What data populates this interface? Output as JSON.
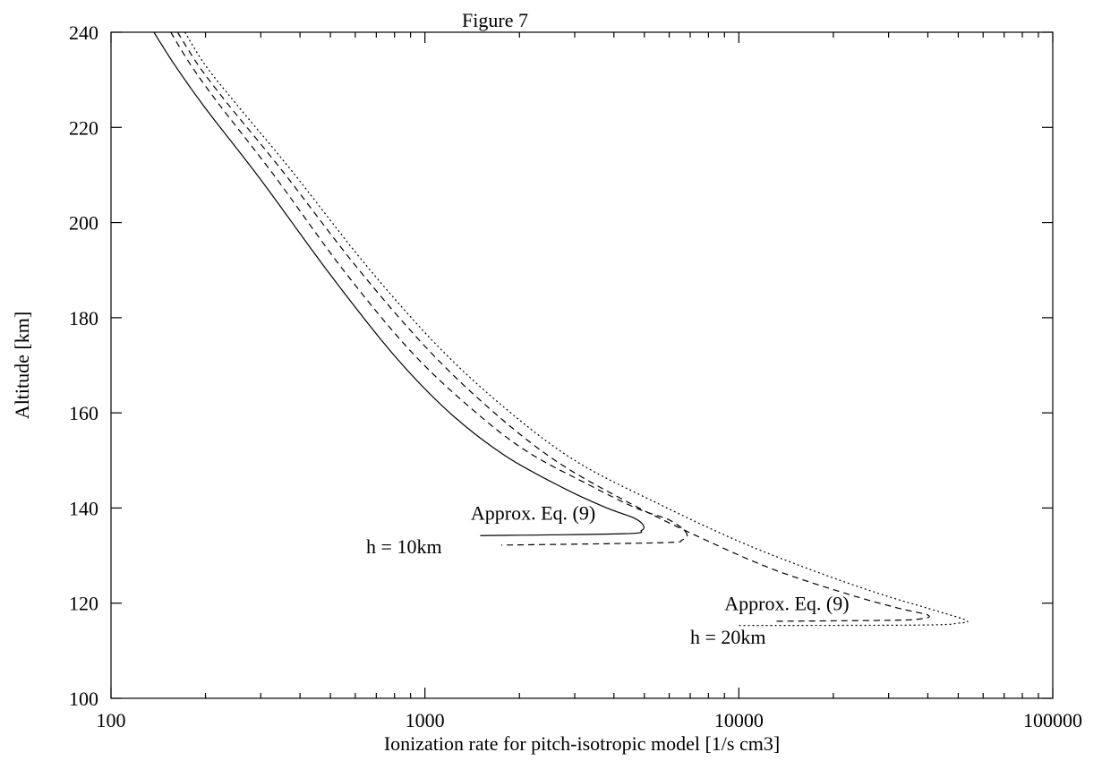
{
  "chart_data": {
    "type": "line",
    "title": "Figure 7",
    "xlabel": "Ionization rate for pitch-isotropic model [1/s cm3]",
    "ylabel": "Altitude [km]",
    "xscale": "log",
    "xlim": [
      100,
      100000
    ],
    "ylim": [
      100,
      240
    ],
    "xticks": [
      100,
      1000,
      10000,
      100000
    ],
    "xtick_labels": [
      "100",
      "1000",
      "10000",
      "100000"
    ],
    "yticks": [
      100,
      120,
      140,
      160,
      180,
      200,
      220,
      240
    ],
    "ytick_labels": [
      "100",
      "120",
      "140",
      "160",
      "180",
      "200",
      "220",
      "240"
    ],
    "grid": false,
    "legend": "none",
    "series": [
      {
        "style": "solid",
        "points": [
          [
            137,
            240
          ],
          [
            160,
            233
          ],
          [
            200,
            224
          ],
          [
            300,
            209
          ],
          [
            500,
            189
          ],
          [
            800,
            172
          ],
          [
            1200,
            160
          ],
          [
            1800,
            151
          ],
          [
            2800,
            144
          ],
          [
            3800,
            140
          ],
          [
            4600,
            138
          ],
          [
            4950,
            136.5
          ],
          [
            4900,
            135.3
          ],
          [
            4300,
            134.6
          ],
          [
            1500,
            134.2
          ]
        ]
      },
      {
        "style": "dashed",
        "points": [
          [
            155,
            240
          ],
          [
            180,
            233
          ],
          [
            220,
            225
          ],
          [
            330,
            210
          ],
          [
            550,
            190
          ],
          [
            900,
            173
          ],
          [
            1400,
            161
          ],
          [
            2100,
            152
          ],
          [
            3300,
            145
          ],
          [
            4700,
            140
          ],
          [
            6000,
            137.5
          ],
          [
            6800,
            134.8
          ],
          [
            6600,
            133.3
          ],
          [
            5600,
            132.7
          ],
          [
            1750,
            132.2
          ]
        ]
      },
      {
        "style": "dashed",
        "points": [
          [
            163,
            240
          ],
          [
            190,
            233
          ],
          [
            235,
            225
          ],
          [
            350,
            211
          ],
          [
            600,
            191
          ],
          [
            1000,
            174
          ],
          [
            1600,
            161
          ],
          [
            2600,
            150
          ],
          [
            4500,
            141
          ],
          [
            8000,
            133
          ],
          [
            13000,
            127
          ],
          [
            22000,
            122
          ],
          [
            32000,
            119
          ],
          [
            40000,
            117.5
          ],
          [
            38000,
            116.7
          ],
          [
            30000,
            116.4
          ],
          [
            13000,
            116.2
          ]
        ]
      },
      {
        "style": "dotted",
        "points": [
          [
            172,
            240
          ],
          [
            200,
            233
          ],
          [
            250,
            225
          ],
          [
            375,
            211
          ],
          [
            650,
            191
          ],
          [
            1100,
            174
          ],
          [
            1800,
            161
          ],
          [
            3000,
            150
          ],
          [
            5500,
            141
          ],
          [
            10000,
            133
          ],
          [
            17000,
            127
          ],
          [
            28000,
            122
          ],
          [
            42000,
            118.5
          ],
          [
            53000,
            116.4
          ],
          [
            50000,
            115.8
          ],
          [
            38000,
            115.4
          ],
          [
            10000,
            115.3
          ]
        ]
      }
    ],
    "annotations": [
      {
        "text": "Approx. Eq. (9)",
        "x": 1400,
        "y": 137.5
      },
      {
        "text": "h = 10km",
        "x": 650,
        "y": 130.5
      },
      {
        "text": "Approx. Eq. (9)",
        "x": 9000,
        "y": 118.5
      },
      {
        "text": "h = 20km",
        "x": 7000,
        "y": 111.5
      }
    ]
  }
}
